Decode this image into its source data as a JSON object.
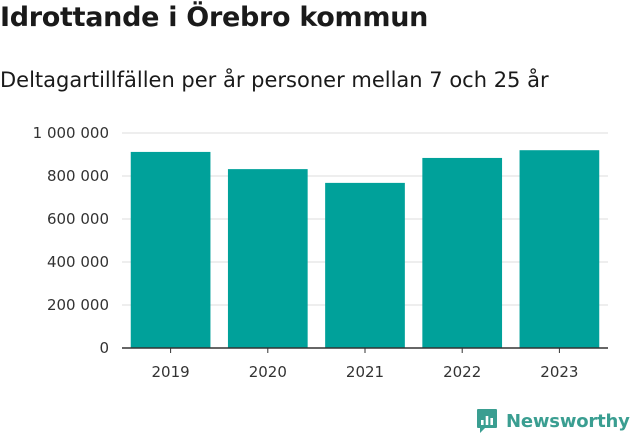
{
  "header": {
    "title": "Idrottande i Örebro kommun",
    "subtitle": "Deltagartillfällen per år personer mellan 7 och 25 år"
  },
  "chart_data": {
    "type": "bar",
    "title": "Idrottande i Örebro kommun",
    "subtitle": "Deltagartillfällen per år personer mellan 7 och 25 år",
    "xlabel": "",
    "ylabel": "",
    "categories": [
      "2019",
      "2020",
      "2021",
      "2022",
      "2023"
    ],
    "values": [
      912000,
      832000,
      768000,
      884000,
      920000
    ],
    "ylim": [
      0,
      1000000
    ],
    "yticks": [
      0,
      200000,
      400000,
      600000,
      800000,
      1000000
    ],
    "ytick_labels": [
      "0",
      "200 000",
      "400 000",
      "600 000",
      "800 000",
      "1 000 000"
    ],
    "grid": true,
    "legend": "none",
    "colors": {
      "bar": "#00a19a",
      "grid": "#dddddd",
      "axis": "#333333"
    }
  },
  "branding": {
    "name": "Newsworthy",
    "icon": "newsworthy-logo-icon",
    "color": "#3a9e91"
  }
}
